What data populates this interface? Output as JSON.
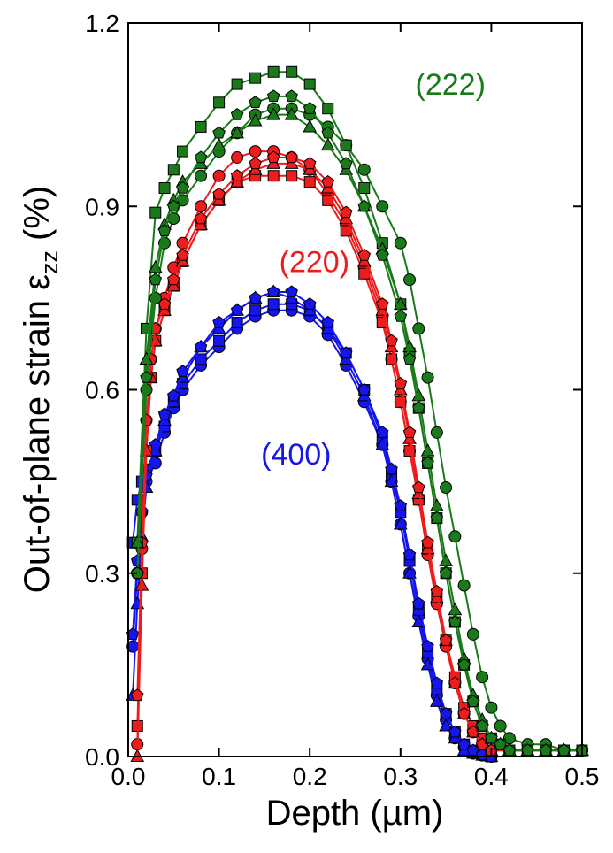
{
  "chart_data": {
    "type": "line",
    "xlabel": "Depth (µm)",
    "ylabel": "Out-of-plane strain ε",
    "ylabel_subscript": "zz",
    "ylabel_unit": " (%)",
    "xlim": [
      0.0,
      0.5
    ],
    "ylim": [
      0.0,
      1.2
    ],
    "x_ticks": [
      "0.0",
      "0.1",
      "0.2",
      "0.3",
      "0.4",
      "0.5"
    ],
    "y_ticks": [
      "0.0",
      "0.3",
      "0.6",
      "0.9",
      "1.2"
    ],
    "grid": false,
    "colors": {
      "222": "#1a7a1a",
      "220": "#ee1c1c",
      "400": "#1515ee"
    },
    "annotations": [
      {
        "text": "(222)",
        "group": "222",
        "x": 0.355,
        "y": 1.1
      },
      {
        "text": "(220)",
        "group": "220",
        "x": 0.205,
        "y": 0.81
      },
      {
        "text": "(400)",
        "group": "400",
        "x": 0.185,
        "y": 0.495
      }
    ],
    "series": [
      {
        "group": "400",
        "marker": "circle",
        "x": [
          0.005,
          0.01,
          0.015,
          0.02,
          0.03,
          0.04,
          0.05,
          0.06,
          0.08,
          0.1,
          0.12,
          0.14,
          0.16,
          0.18,
          0.2,
          0.22,
          0.24,
          0.26,
          0.28,
          0.29,
          0.3,
          0.31,
          0.32,
          0.33,
          0.34,
          0.35,
          0.36,
          0.37,
          0.38,
          0.39,
          0.4
        ],
        "y": [
          0.18,
          0.3,
          0.4,
          0.45,
          0.48,
          0.53,
          0.57,
          0.6,
          0.64,
          0.67,
          0.7,
          0.72,
          0.73,
          0.73,
          0.72,
          0.69,
          0.64,
          0.58,
          0.51,
          0.45,
          0.38,
          0.3,
          0.23,
          0.16,
          0.1,
          0.06,
          0.03,
          0.015,
          0.005,
          0.002,
          0.0
        ]
      },
      {
        "group": "400",
        "marker": "square",
        "x": [
          0.005,
          0.01,
          0.015,
          0.02,
          0.03,
          0.04,
          0.05,
          0.06,
          0.08,
          0.1,
          0.12,
          0.14,
          0.16,
          0.18,
          0.2,
          0.22,
          0.24,
          0.26,
          0.28,
          0.29,
          0.3,
          0.31,
          0.32,
          0.33,
          0.34,
          0.35,
          0.36,
          0.37,
          0.38,
          0.39,
          0.4
        ],
        "y": [
          0.35,
          0.42,
          0.45,
          0.47,
          0.5,
          0.54,
          0.58,
          0.61,
          0.65,
          0.68,
          0.71,
          0.73,
          0.74,
          0.74,
          0.73,
          0.7,
          0.66,
          0.6,
          0.52,
          0.46,
          0.4,
          0.32,
          0.24,
          0.17,
          0.11,
          0.07,
          0.04,
          0.02,
          0.01,
          0.003,
          0.0
        ]
      },
      {
        "group": "400",
        "marker": "triangle",
        "x": [
          0.005,
          0.01,
          0.015,
          0.02,
          0.03,
          0.04,
          0.05,
          0.06,
          0.08,
          0.1,
          0.12,
          0.14,
          0.16,
          0.18,
          0.2,
          0.22,
          0.24,
          0.26,
          0.28,
          0.29,
          0.3,
          0.31,
          0.32,
          0.33,
          0.34,
          0.35,
          0.36,
          0.37,
          0.38,
          0.39,
          0.4
        ],
        "y": [
          0.1,
          0.25,
          0.36,
          0.44,
          0.5,
          0.55,
          0.58,
          0.62,
          0.67,
          0.7,
          0.73,
          0.75,
          0.76,
          0.75,
          0.73,
          0.7,
          0.65,
          0.59,
          0.51,
          0.45,
          0.38,
          0.3,
          0.22,
          0.15,
          0.09,
          0.05,
          0.03,
          0.01,
          0.005,
          0.002,
          0.0
        ]
      },
      {
        "group": "400",
        "marker": "pentagon",
        "x": [
          0.005,
          0.01,
          0.015,
          0.02,
          0.03,
          0.04,
          0.05,
          0.06,
          0.08,
          0.1,
          0.12,
          0.14,
          0.16,
          0.18,
          0.2,
          0.22,
          0.24,
          0.26,
          0.28,
          0.29,
          0.3,
          0.31,
          0.32,
          0.33,
          0.34,
          0.35,
          0.36,
          0.37,
          0.38,
          0.39,
          0.4
        ],
        "y": [
          0.2,
          0.32,
          0.4,
          0.46,
          0.51,
          0.56,
          0.59,
          0.63,
          0.67,
          0.71,
          0.73,
          0.75,
          0.76,
          0.76,
          0.74,
          0.71,
          0.66,
          0.6,
          0.53,
          0.47,
          0.41,
          0.33,
          0.25,
          0.18,
          0.12,
          0.07,
          0.04,
          0.02,
          0.01,
          0.003,
          0.0
        ]
      },
      {
        "group": "220",
        "marker": "circle",
        "x": [
          0.01,
          0.015,
          0.02,
          0.025,
          0.03,
          0.04,
          0.05,
          0.06,
          0.08,
          0.1,
          0.12,
          0.14,
          0.16,
          0.18,
          0.2,
          0.22,
          0.24,
          0.26,
          0.28,
          0.29,
          0.3,
          0.31,
          0.32,
          0.33,
          0.34,
          0.35,
          0.36,
          0.37,
          0.38,
          0.39,
          0.4,
          0.42,
          0.44,
          0.46,
          0.48,
          0.5
        ],
        "y": [
          0.02,
          0.34,
          0.55,
          0.65,
          0.7,
          0.75,
          0.8,
          0.84,
          0.9,
          0.95,
          0.98,
          0.99,
          0.99,
          0.98,
          0.96,
          0.92,
          0.87,
          0.8,
          0.72,
          0.65,
          0.58,
          0.5,
          0.42,
          0.33,
          0.25,
          0.18,
          0.12,
          0.07,
          0.04,
          0.02,
          0.01,
          0.01,
          0.01,
          0.01,
          0.01,
          0.01
        ]
      },
      {
        "group": "220",
        "marker": "square",
        "x": [
          0.01,
          0.015,
          0.02,
          0.025,
          0.03,
          0.04,
          0.05,
          0.06,
          0.08,
          0.1,
          0.12,
          0.14,
          0.16,
          0.18,
          0.2,
          0.22,
          0.24,
          0.26,
          0.28,
          0.29,
          0.3,
          0.31,
          0.32,
          0.33,
          0.34,
          0.35,
          0.36,
          0.37,
          0.38,
          0.39,
          0.4,
          0.42,
          0.44,
          0.46,
          0.48,
          0.5
        ],
        "y": [
          0.05,
          0.3,
          0.5,
          0.62,
          0.68,
          0.73,
          0.77,
          0.81,
          0.87,
          0.91,
          0.94,
          0.95,
          0.95,
          0.95,
          0.94,
          0.91,
          0.86,
          0.79,
          0.71,
          0.65,
          0.58,
          0.5,
          0.42,
          0.34,
          0.26,
          0.19,
          0.13,
          0.08,
          0.05,
          0.03,
          0.01,
          0.01,
          0.01,
          0.01,
          0.01,
          0.01
        ]
      },
      {
        "group": "220",
        "marker": "triangle",
        "x": [
          0.01,
          0.015,
          0.02,
          0.025,
          0.03,
          0.04,
          0.05,
          0.06,
          0.08,
          0.1,
          0.12,
          0.14,
          0.16,
          0.18,
          0.2,
          0.22,
          0.24,
          0.26,
          0.28,
          0.29,
          0.3,
          0.31,
          0.32,
          0.33,
          0.34,
          0.35,
          0.36,
          0.37,
          0.38,
          0.39,
          0.4,
          0.42,
          0.44,
          0.46,
          0.48,
          0.5
        ],
        "y": [
          0.0,
          0.28,
          0.5,
          0.62,
          0.68,
          0.73,
          0.77,
          0.81,
          0.87,
          0.91,
          0.94,
          0.96,
          0.97,
          0.97,
          0.96,
          0.93,
          0.88,
          0.81,
          0.73,
          0.67,
          0.6,
          0.52,
          0.43,
          0.34,
          0.26,
          0.19,
          0.12,
          0.07,
          0.04,
          0.02,
          0.01,
          0.01,
          0.01,
          0.01,
          0.01,
          0.01
        ]
      },
      {
        "group": "220",
        "marker": "pentagon",
        "x": [
          0.01,
          0.015,
          0.02,
          0.025,
          0.03,
          0.04,
          0.05,
          0.06,
          0.08,
          0.1,
          0.12,
          0.14,
          0.16,
          0.18,
          0.2,
          0.22,
          0.24,
          0.26,
          0.28,
          0.29,
          0.3,
          0.31,
          0.32,
          0.33,
          0.34,
          0.35,
          0.36,
          0.37,
          0.38,
          0.39,
          0.4,
          0.42,
          0.44,
          0.46,
          0.48,
          0.5
        ],
        "y": [
          0.1,
          0.35,
          0.55,
          0.65,
          0.7,
          0.74,
          0.78,
          0.82,
          0.88,
          0.92,
          0.95,
          0.97,
          0.98,
          0.98,
          0.97,
          0.94,
          0.89,
          0.82,
          0.74,
          0.68,
          0.61,
          0.53,
          0.44,
          0.35,
          0.27,
          0.19,
          0.12,
          0.07,
          0.04,
          0.02,
          0.01,
          0.01,
          0.01,
          0.01,
          0.01,
          0.01
        ]
      },
      {
        "group": "222",
        "marker": "circle",
        "x": [
          0.01,
          0.02,
          0.03,
          0.04,
          0.05,
          0.06,
          0.08,
          0.1,
          0.12,
          0.14,
          0.16,
          0.18,
          0.2,
          0.22,
          0.24,
          0.26,
          0.28,
          0.3,
          0.31,
          0.32,
          0.33,
          0.34,
          0.35,
          0.36,
          0.37,
          0.38,
          0.39,
          0.4,
          0.41,
          0.42,
          0.44,
          0.46,
          0.48,
          0.5
        ],
        "y": [
          0.3,
          0.6,
          0.75,
          0.84,
          0.88,
          0.91,
          0.95,
          0.99,
          1.02,
          1.05,
          1.06,
          1.06,
          1.05,
          1.03,
          1.0,
          0.96,
          0.9,
          0.84,
          0.78,
          0.7,
          0.62,
          0.53,
          0.44,
          0.36,
          0.28,
          0.2,
          0.13,
          0.08,
          0.05,
          0.03,
          0.02,
          0.02,
          0.01,
          0.01
        ]
      },
      {
        "group": "222",
        "marker": "square",
        "x": [
          0.01,
          0.02,
          0.03,
          0.04,
          0.05,
          0.06,
          0.08,
          0.1,
          0.12,
          0.14,
          0.16,
          0.18,
          0.2,
          0.22,
          0.24,
          0.26,
          0.28,
          0.3,
          0.31,
          0.32,
          0.33,
          0.34,
          0.35,
          0.36,
          0.37,
          0.38,
          0.39,
          0.4,
          0.41,
          0.42,
          0.44,
          0.46,
          0.48,
          0.5
        ],
        "y": [
          0.35,
          0.7,
          0.89,
          0.93,
          0.96,
          0.99,
          1.03,
          1.07,
          1.1,
          1.11,
          1.12,
          1.12,
          1.1,
          1.06,
          1.0,
          0.93,
          0.84,
          0.74,
          0.66,
          0.57,
          0.48,
          0.39,
          0.3,
          0.22,
          0.15,
          0.09,
          0.05,
          0.03,
          0.02,
          0.01,
          0.01,
          0.01,
          0.01,
          0.01
        ]
      },
      {
        "group": "222",
        "marker": "triangle",
        "x": [
          0.01,
          0.02,
          0.03,
          0.04,
          0.05,
          0.06,
          0.08,
          0.1,
          0.12,
          0.14,
          0.16,
          0.18,
          0.2,
          0.22,
          0.24,
          0.26,
          0.28,
          0.3,
          0.31,
          0.32,
          0.33,
          0.34,
          0.35,
          0.36,
          0.37,
          0.38,
          0.39,
          0.4,
          0.41,
          0.42,
          0.44,
          0.46,
          0.48,
          0.5
        ],
        "y": [
          0.35,
          0.65,
          0.8,
          0.87,
          0.91,
          0.94,
          0.97,
          1.0,
          1.02,
          1.04,
          1.05,
          1.05,
          1.03,
          1.0,
          0.96,
          0.9,
          0.83,
          0.74,
          0.67,
          0.59,
          0.5,
          0.41,
          0.32,
          0.24,
          0.16,
          0.1,
          0.06,
          0.03,
          0.02,
          0.01,
          0.01,
          0.01,
          0.01,
          0.01
        ]
      },
      {
        "group": "222",
        "marker": "pentagon",
        "x": [
          0.01,
          0.02,
          0.03,
          0.04,
          0.05,
          0.06,
          0.08,
          0.1,
          0.12,
          0.14,
          0.16,
          0.18,
          0.2,
          0.22,
          0.24,
          0.26,
          0.28,
          0.3,
          0.31,
          0.32,
          0.33,
          0.34,
          0.35,
          0.36,
          0.37,
          0.38,
          0.39,
          0.4,
          0.41,
          0.42,
          0.44,
          0.46,
          0.48,
          0.5
        ],
        "y": [
          0.3,
          0.62,
          0.78,
          0.86,
          0.9,
          0.93,
          0.98,
          1.02,
          1.05,
          1.07,
          1.08,
          1.08,
          1.06,
          1.02,
          0.97,
          0.9,
          0.82,
          0.72,
          0.65,
          0.57,
          0.48,
          0.39,
          0.3,
          0.22,
          0.15,
          0.09,
          0.05,
          0.03,
          0.02,
          0.01,
          0.01,
          0.01,
          0.01,
          0.01
        ]
      }
    ]
  }
}
